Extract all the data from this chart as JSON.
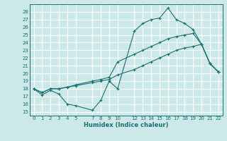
{
  "xlabel": "Humidex (Indice chaleur)",
  "bg_color": "#cce8e8",
  "grid_color": "#ffffff",
  "line_color": "#1a7070",
  "xlim": [
    -0.5,
    22.5
  ],
  "ylim": [
    14.5,
    29.0
  ],
  "xticks": [
    0,
    1,
    2,
    3,
    4,
    5,
    7,
    8,
    9,
    10,
    12,
    13,
    14,
    15,
    16,
    17,
    18,
    19,
    20,
    21,
    22
  ],
  "xtick_labels": [
    "0",
    "1",
    "2",
    "3",
    "4",
    "5",
    "7",
    "8",
    "9",
    "10",
    "12",
    "13",
    "14",
    "15",
    "16",
    "17",
    "18",
    "19",
    "20",
    "21",
    "22"
  ],
  "yticks": [
    15,
    16,
    17,
    18,
    19,
    20,
    21,
    22,
    23,
    24,
    25,
    26,
    27,
    28
  ],
  "series": [
    {
      "x": [
        0,
        1,
        2,
        3,
        4,
        5,
        7,
        8,
        9,
        10,
        12,
        13,
        14,
        15,
        16,
        17,
        18,
        19,
        20,
        21,
        22
      ],
      "y": [
        18.0,
        17.2,
        17.8,
        17.3,
        16.0,
        15.8,
        15.2,
        16.5,
        19.0,
        18.0,
        25.5,
        26.5,
        27.0,
        27.2,
        28.5,
        27.0,
        26.5,
        25.7,
        23.8,
        21.3,
        20.2
      ]
    },
    {
      "x": [
        0,
        1,
        2,
        3,
        4,
        5,
        7,
        8,
        9,
        10,
        12,
        13,
        14,
        15,
        16,
        17,
        18,
        19,
        20,
        21,
        22
      ],
      "y": [
        18.0,
        17.5,
        18.0,
        18.0,
        18.2,
        18.5,
        19.0,
        19.2,
        19.5,
        21.5,
        22.5,
        23.0,
        23.5,
        24.0,
        24.5,
        24.8,
        25.0,
        25.2,
        23.8,
        21.3,
        20.2
      ]
    },
    {
      "x": [
        0,
        1,
        2,
        3,
        4,
        5,
        7,
        8,
        9,
        10,
        12,
        13,
        14,
        15,
        16,
        17,
        18,
        19,
        20,
        21,
        22
      ],
      "y": [
        18.0,
        17.5,
        18.0,
        18.0,
        18.2,
        18.4,
        18.8,
        19.0,
        19.2,
        19.8,
        20.5,
        21.0,
        21.5,
        22.0,
        22.5,
        23.0,
        23.3,
        23.5,
        23.8,
        21.3,
        20.2
      ]
    }
  ]
}
